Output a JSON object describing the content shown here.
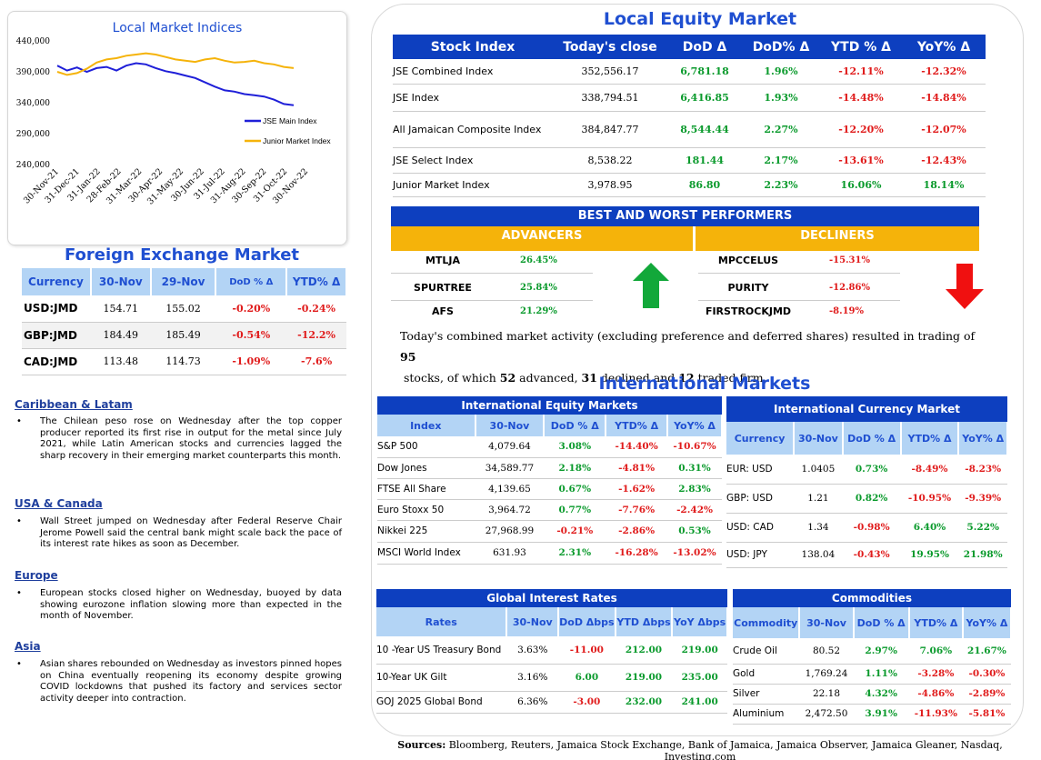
{
  "chart": {
    "title": "Local Market Indices",
    "chart_data": {
      "type": "line",
      "y_ticks": [
        "440,000",
        "390,000",
        "340,000",
        "290,000",
        "240,000"
      ],
      "x_ticks": [
        "30-Nov-21",
        "31-Dec-21",
        "31-Jan-22",
        "28-Feb-22",
        "31-Mar-22",
        "30-Apr-22",
        "31-May-22",
        "30-Jun-22",
        "31-Jul-22",
        "31-Aug-22",
        "30-Sep-22",
        "31-Oct-22",
        "30-Nov-22"
      ],
      "ylim": [
        240000,
        440000
      ],
      "series": [
        {
          "name": "JSE Main Index",
          "color": "#1f1fd8",
          "values": [
            400000,
            392000,
            397000,
            390000,
            396000,
            398000,
            392000,
            400000,
            404000,
            402000,
            396000,
            391000,
            388000,
            384000,
            380000,
            373000,
            366000,
            360000,
            358000,
            354000,
            352000,
            350000,
            345000,
            338000,
            336000
          ]
        },
        {
          "name": "Junior Market Index",
          "color": "#f5b30a",
          "values": [
            390000,
            385000,
            388000,
            395000,
            405000,
            410000,
            412000,
            416000,
            418000,
            420000,
            418000,
            414000,
            410000,
            408000,
            406000,
            410000,
            412000,
            408000,
            405000,
            406000,
            408000,
            404000,
            402000,
            398000,
            396000
          ]
        }
      ]
    }
  },
  "fx": {
    "title": "Foreign Exchange Market",
    "headers": [
      "Currency",
      "30-Nov",
      "29-Nov",
      "DoD % Δ",
      "YTD% Δ"
    ],
    "rows": [
      {
        "c": "USD:JMD",
        "a": "154.71",
        "b": "155.02",
        "d": "-0.20%",
        "y": "-0.24%"
      },
      {
        "c": "GBP:JMD",
        "a": "184.49",
        "b": "185.49",
        "d": "-0.54%",
        "y": "-12.2%"
      },
      {
        "c": "CAD:JMD",
        "a": "113.48",
        "b": "114.73",
        "d": "-1.09%",
        "y": "-7.6%"
      }
    ]
  },
  "news": [
    {
      "h": "Caribbean & Latam",
      "p": "The Chilean peso rose on Wednesday after the top copper producer reported its first rise in output for the metal since July 2021, while Latin American stocks and currencies lagged the sharp recovery in their emerging market counterparts this month."
    },
    {
      "h": "USA & Canada",
      "p": "Wall Street jumped on Wednesday after Federal Reserve Chair Jerome Powell said the central bank might scale back the pace of its interest rate hikes as soon as December."
    },
    {
      "h": "Europe",
      "p": "European stocks closed higher on Wednesday, buoyed by data showing eurozone inflation slowing more than expected in the month of November."
    },
    {
      "h": "Asia",
      "p": "Asian shares rebounded on Wednesday as investors pinned hopes on China eventually reopening its economy despite growing COVID lockdowns that pushed its factory and services sector activity deeper into contraction."
    }
  ],
  "lem": {
    "title": "Local Equity Market",
    "headers": [
      "Stock Index",
      "Today's close",
      "DoD  Δ",
      "DoD% Δ",
      "YTD % Δ",
      "YoY% Δ"
    ],
    "rows": [
      {
        "n": "JSE Combined Index",
        "c": "352,556.17",
        "d": "6,781.18",
        "dp": "1.96%",
        "y": "-12.11%",
        "yy": "-12.32%"
      },
      {
        "n": "JSE Index",
        "c": "338,794.51",
        "d": "6,416.85",
        "dp": "1.93%",
        "y": "-14.48%",
        "yy": "-14.84%"
      },
      {
        "n": "All Jamaican Composite Index",
        "c": "384,847.77",
        "d": "8,544.44",
        "dp": "2.27%",
        "y": "-12.20%",
        "yy": "-12.07%"
      },
      {
        "n": "JSE Select Index",
        "c": "8,538.22",
        "d": "181.44",
        "dp": "2.17%",
        "y": "-13.61%",
        "yy": "-12.43%"
      },
      {
        "n": "Junior Market Index",
        "c": "3,978.95",
        "d": "86.80",
        "dp": "2.23%",
        "y": "16.06%",
        "yy": "18.14%"
      }
    ]
  },
  "bw": {
    "title": "BEST AND WORST PERFORMERS",
    "adv_label": "ADVANCERS",
    "dec_label": "DECLINERS",
    "advancers": [
      {
        "n": "MTLJA",
        "v": "26.45%"
      },
      {
        "n": "SPURTREE",
        "v": "25.84%"
      },
      {
        "n": "AFS",
        "v": "21.29%"
      }
    ],
    "decliners": [
      {
        "n": "MPCCELUS",
        "v": "-15.31%"
      },
      {
        "n": "PURITY",
        "v": "-12.86%"
      },
      {
        "n": "FIRSTROCKJMD",
        "v": "-8.19%"
      }
    ]
  },
  "summary": {
    "t1": "Today's combined market activity (excluding preference and deferred shares) resulted in trading of ",
    "n1": "95",
    "t2": "stocks, of which ",
    "n2": "52",
    "t3": " advanced, ",
    "n3": "31",
    "t4": " declined and ",
    "n4": "12",
    "t5": " traded firm."
  },
  "intl": {
    "title": "International Markets",
    "equity": {
      "title": "International Equity Markets",
      "headers": [
        "Index",
        "30-Nov",
        "DoD % Δ",
        "YTD% Δ",
        "YoY% Δ"
      ],
      "rows": [
        [
          "S&P 500",
          "4,079.64",
          "3.08%",
          "-14.40%",
          "-10.67%"
        ],
        [
          "Dow Jones",
          "34,589.77",
          "2.18%",
          "-4.81%",
          "0.31%"
        ],
        [
          "FTSE All Share",
          "4,139.65",
          "0.67%",
          "-1.62%",
          "2.83%"
        ],
        [
          "Euro Stoxx 50",
          "3,964.72",
          "0.77%",
          "-7.76%",
          "-2.42%"
        ],
        [
          "Nikkei 225",
          "27,968.99",
          "-0.21%",
          "-2.86%",
          "0.53%"
        ],
        [
          "MSCI World Index",
          "631.93",
          "2.31%",
          "-16.28%",
          "-13.02%"
        ]
      ]
    },
    "currency": {
      "title": "International Currency Market",
      "headers": [
        "Currency",
        "30-Nov",
        "DoD % Δ",
        "YTD% Δ",
        "YoY% Δ"
      ],
      "rows": [
        [
          "EUR: USD",
          "1.0405",
          "0.73%",
          "-8.49%",
          "-8.23%"
        ],
        [
          "GBP: USD",
          "1.21",
          "0.82%",
          "-10.95%",
          "-9.39%"
        ],
        [
          "USD: CAD",
          "1.34",
          "-0.98%",
          "6.40%",
          "5.22%"
        ],
        [
          "USD: JPY",
          "138.04",
          "-0.43%",
          "19.95%",
          "21.98%"
        ]
      ]
    },
    "rates": {
      "title": "Global Interest Rates",
      "headers": [
        "Rates",
        "30-Nov",
        "DoD Δbps",
        "YTD Δbps",
        "YoY Δbps"
      ],
      "rows": [
        [
          "10 -Year US Treasury Bond",
          "3.63%",
          "-11.00",
          "212.00",
          "219.00"
        ],
        [
          "10-Year UK Gilt",
          "3.16%",
          "6.00",
          "219.00",
          "235.00"
        ],
        [
          "GOJ 2025 Global Bond",
          "6.36%",
          "-3.00",
          "232.00",
          "241.00"
        ]
      ]
    },
    "commodities": {
      "title": "Commodities",
      "headers": [
        "Commodity",
        "30-Nov",
        "DoD % Δ",
        "YTD% Δ",
        "YoY% Δ"
      ],
      "rows": [
        [
          "Crude Oil",
          "80.52",
          "2.97%",
          "7.06%",
          "21.67%"
        ],
        [
          "Gold",
          "1,769.24",
          "1.11%",
          "-3.28%",
          "-0.30%"
        ],
        [
          "Silver",
          "22.18",
          "4.32%",
          "-4.86%",
          "-2.89%"
        ],
        [
          "Aluminium",
          "2,472.50",
          "3.91%",
          "-11.93%",
          "-5.81%"
        ]
      ]
    }
  },
  "sources": {
    "label": "Sources:",
    "text": " Bloomberg, Reuters, Jamaica Stock Exchange, Bank of Jamaica, Jamaica Observer, Jamaica Gleaner, Nasdaq, Investing.com"
  }
}
